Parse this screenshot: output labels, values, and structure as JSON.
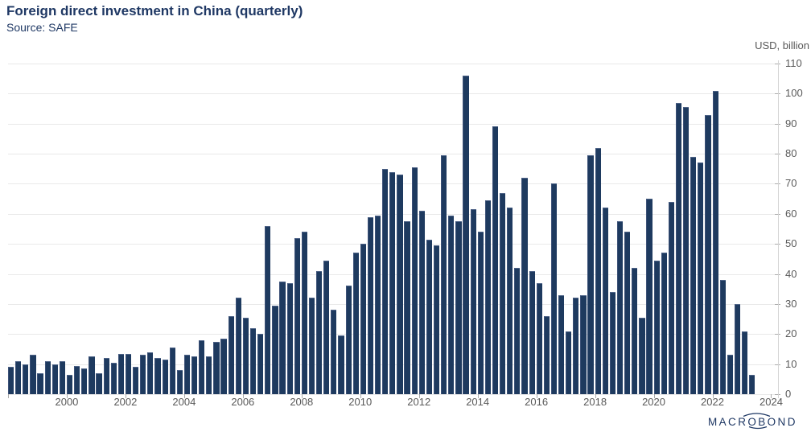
{
  "header": {
    "title": "Foreign direct investment in China (quarterly)",
    "subtitle": "Source: SAFE"
  },
  "chart_data": {
    "type": "bar",
    "title": "Foreign direct investment in China (quarterly)",
    "source": "Source: SAFE",
    "unit_label": "USD, billion",
    "frequency": "quarterly",
    "x_start": "1998 Q1",
    "x_end": "2023 Q2",
    "ylim": [
      0,
      110
    ],
    "y_ticks": [
      0,
      10,
      20,
      30,
      40,
      50,
      60,
      70,
      80,
      90,
      100,
      110
    ],
    "x_tick_labels": [
      "2000",
      "2002",
      "2004",
      "2006",
      "2008",
      "2010",
      "2012",
      "2014",
      "2016",
      "2018",
      "2020",
      "2022",
      "2024"
    ],
    "grid": true,
    "legend_position": "none",
    "bar_color": "#1e3a5f",
    "grid_color": "#e9e9e9",
    "axis_text_color": "#595959",
    "title_color": "#1f3864",
    "values": [
      9,
      11,
      10,
      13,
      7,
      11,
      10,
      11,
      6.5,
      9.5,
      8.5,
      12.5,
      7,
      12,
      10.5,
      13.5,
      13.5,
      9,
      13,
      14,
      12,
      11.5,
      15.5,
      8,
      13,
      12.5,
      18,
      12.5,
      17.5,
      18.5,
      26,
      32,
      25.5,
      22,
      20,
      56,
      29.5,
      37.5,
      37,
      52,
      54,
      32,
      41,
      44.5,
      28,
      19.5,
      36,
      47,
      50,
      59,
      59.5,
      75,
      74,
      73,
      57.5,
      75.5,
      61,
      51.5,
      49.5,
      79.5,
      59.5,
      57.5,
      106,
      61.5,
      54,
      64.5,
      89,
      67,
      62,
      42,
      72,
      41,
      37,
      26,
      70,
      33,
      21,
      32,
      33,
      79.5,
      82,
      62,
      34,
      57.5,
      54,
      42,
      25.5,
      65,
      44.5,
      47,
      64,
      97,
      95.5,
      79,
      77,
      93,
      101,
      38,
      13,
      30,
      21,
      6.5
    ]
  },
  "branding": {
    "logo_text": "MACROBOND"
  }
}
